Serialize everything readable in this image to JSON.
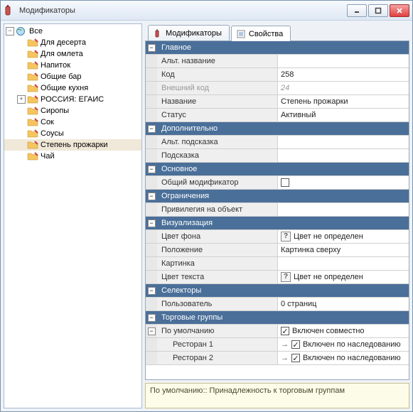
{
  "window": {
    "title": "Модификаторы"
  },
  "tree": {
    "root": {
      "label": "Все"
    },
    "items": [
      {
        "label": "Для десерта"
      },
      {
        "label": "Для омлета"
      },
      {
        "label": "Напиток"
      },
      {
        "label": "Общие бар"
      },
      {
        "label": "Общие кухня"
      },
      {
        "label": "РОССИЯ: ЕГАИС",
        "expandable": true
      },
      {
        "label": "Сиропы"
      },
      {
        "label": "Сок"
      },
      {
        "label": "Соусы"
      },
      {
        "label": "Степень прожарки",
        "selected": true
      },
      {
        "label": "Чай"
      }
    ]
  },
  "tabs": {
    "tab1": "Модификаторы",
    "tab2": "Свойства"
  },
  "props": {
    "cat_main": "Главное",
    "alt_name_lbl": "Альт. название",
    "alt_name_val": "",
    "code_lbl": "Код",
    "code_val": "258",
    "ext_code_lbl": "Внешний код",
    "ext_code_val": "24",
    "name_lbl": "Название",
    "name_val": "Степень прожарки",
    "status_lbl": "Статус",
    "status_val": "Активный",
    "cat_extra": "Дополнительно",
    "alt_hint_lbl": "Альт. подсказка",
    "alt_hint_val": "",
    "hint_lbl": "Подсказка",
    "hint_val": "",
    "cat_basic": "Основное",
    "common_mod_lbl": "Общий модификатор",
    "cat_restr": "Ограничения",
    "priv_lbl": "Привилегия на объект",
    "priv_val": "",
    "cat_visual": "Визуализация",
    "bg_lbl": "Цвет фона",
    "bg_val": "Цвет не определен",
    "pos_lbl": "Положение",
    "pos_val": "Картинка сверху",
    "pic_lbl": "Картинка",
    "pic_val": "",
    "txt_lbl": "Цвет текста",
    "txt_val": "Цвет не определен",
    "cat_sel": "Селекторы",
    "user_lbl": "Пользователь",
    "user_val": "0 страниц",
    "cat_tg": "Торговые группы",
    "def_lbl": "По умолчанию",
    "def_val": "Включен совместно",
    "r1_lbl": "Ресторан 1",
    "r1_val": "Включен по наследованию",
    "r2_lbl": "Ресторан 2",
    "r2_val": "Включен по наследованию"
  },
  "footer": "По умолчанию:: Принадлежность к торговым группам"
}
